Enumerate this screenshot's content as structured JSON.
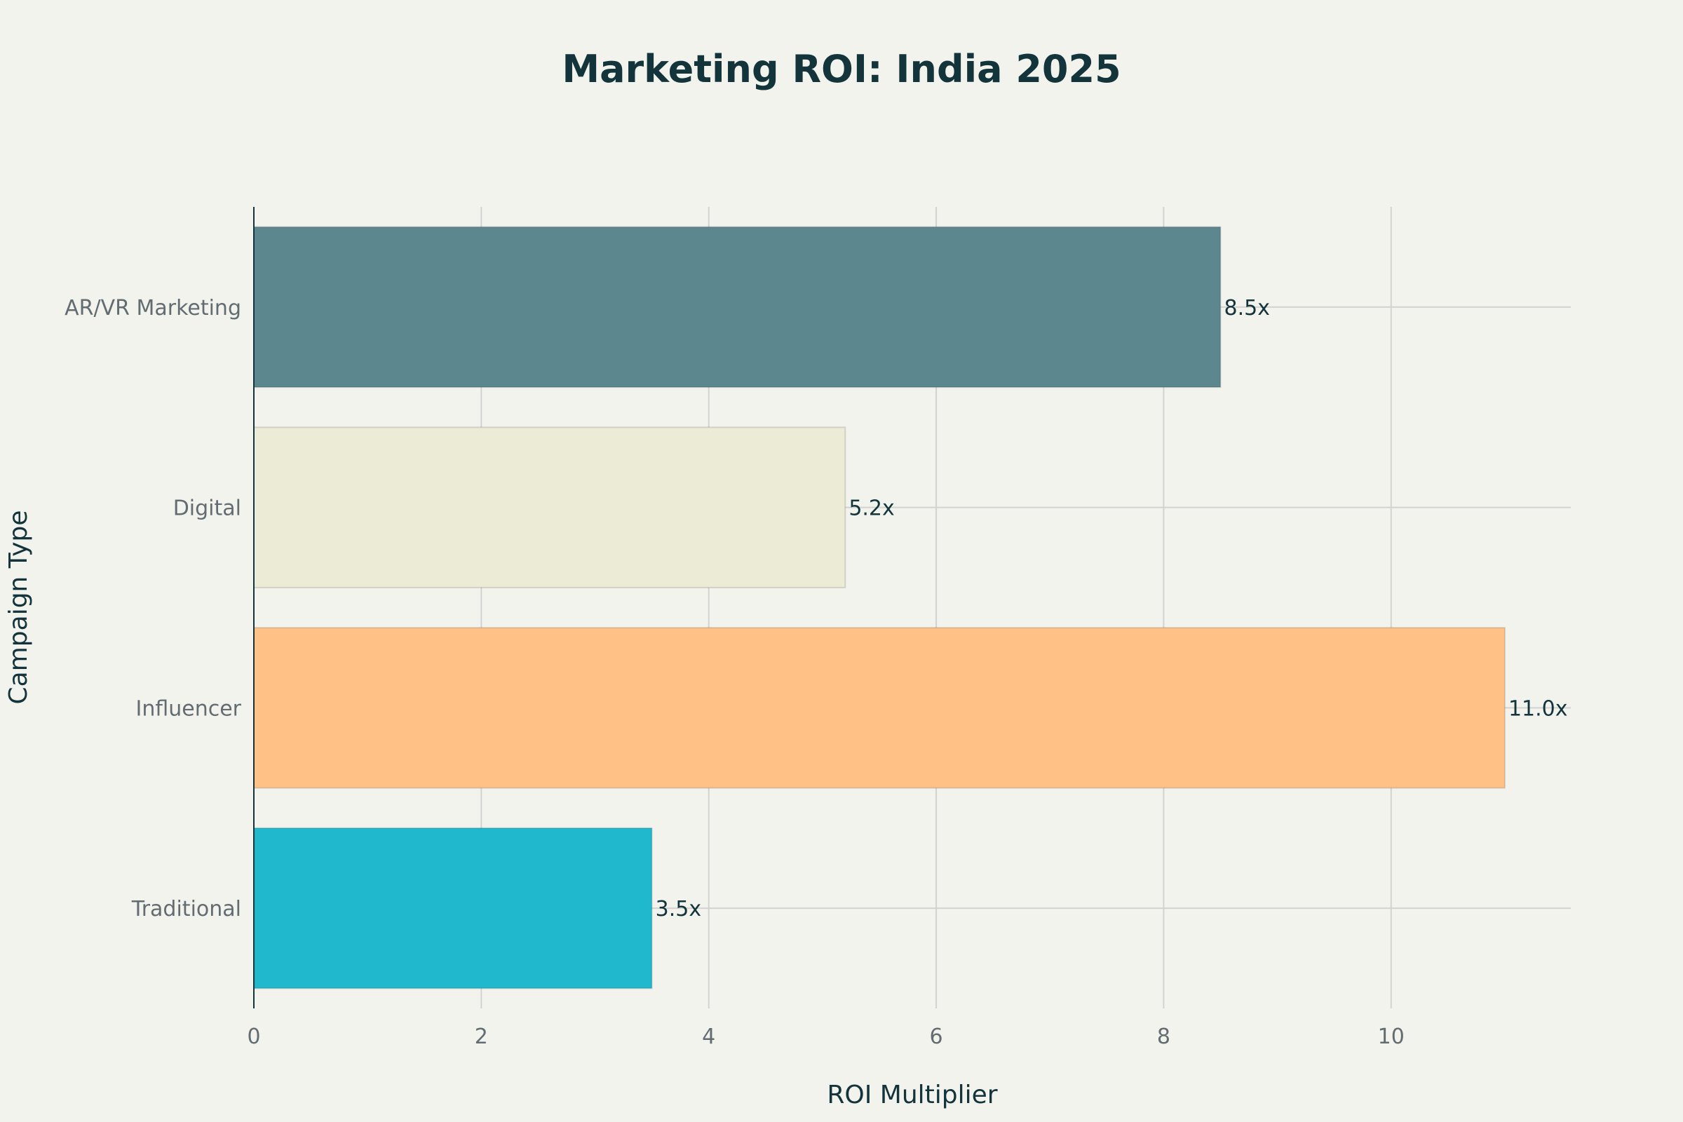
{
  "chart_data": {
    "type": "bar",
    "orientation": "horizontal",
    "title": "Marketing ROI: India 2025",
    "xlabel": "ROI Multiplier",
    "ylabel": "Campaign Type",
    "categories": [
      "AR/VR Marketing",
      "Digital",
      "Influencer",
      "Traditional"
    ],
    "values": [
      8.5,
      5.2,
      11.0,
      3.5
    ],
    "data_labels": [
      "8.5x",
      "5.2x",
      "11.0x",
      "3.5x"
    ],
    "bar_colors": [
      "#5d878f",
      "#ecebd5",
      "#ffc185",
      "#1fb8cd"
    ],
    "xlim": [
      0,
      11.58
    ],
    "xticks": [
      0,
      2,
      4,
      6,
      8,
      10
    ],
    "xtick_labels": [
      "0",
      "2",
      "4",
      "6",
      "8",
      "10"
    ],
    "grid": true,
    "legend": "none"
  }
}
